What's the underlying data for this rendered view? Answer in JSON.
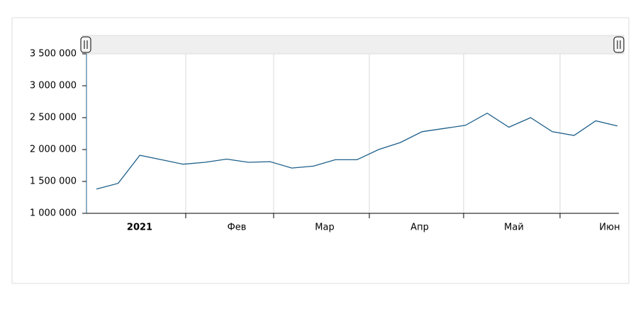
{
  "chart_data": {
    "type": "line",
    "categories": [
      null,
      null,
      null,
      null,
      null,
      null,
      null,
      null,
      null,
      null,
      null,
      null,
      null,
      null,
      null,
      null,
      null,
      null,
      null,
      null,
      null,
      null,
      null,
      null,
      null
    ],
    "x_labels": [
      "2021",
      "Фев",
      "Мар",
      "Апр",
      "Май",
      "Июн"
    ],
    "series": [
      {
        "color": "#1d5f8a",
        "values": [
          1380000,
          1470000,
          1910000,
          1840000,
          1770000,
          1800000,
          1850000,
          1800000,
          1810000,
          1710000,
          1740000,
          1840000,
          1840000,
          2000000,
          2110000,
          2280000,
          2330000,
          2380000,
          2570000,
          2350000,
          2500000,
          2280000,
          2220000,
          2450000,
          2370000
        ]
      }
    ],
    "ylim": [
      1000000,
      3500000
    ],
    "yticks": [
      {
        "value": 1000000,
        "label": "1 000 000"
      },
      {
        "value": 1500000,
        "label": "1 500 000"
      },
      {
        "value": 2000000,
        "label": "2 000 000"
      },
      {
        "value": 2500000,
        "label": "2 500 000"
      },
      {
        "value": 3000000,
        "label": "3 000 000"
      },
      {
        "value": 3500000,
        "label": "3 500 000"
      }
    ],
    "grid": true
  }
}
